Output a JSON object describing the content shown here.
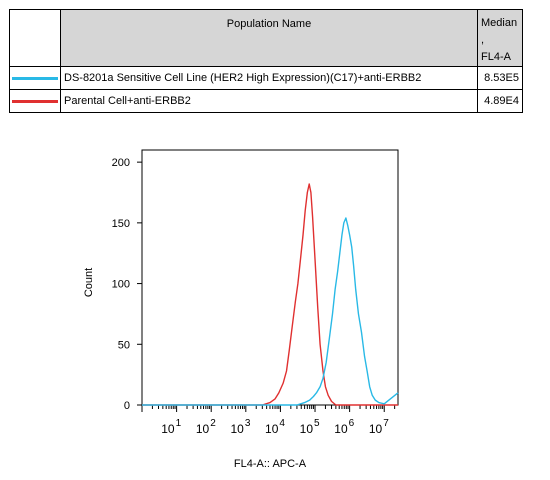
{
  "legend": {
    "header_population": "Population Name",
    "header_median_line1": "Median ,",
    "header_median_line2": "FL4-A",
    "rows": [
      {
        "name": "DS-8201a Sensitive Cell Line (HER2 High Expression)(C17)+anti-ERBB2",
        "median": "8.53E5",
        "color": "#29b9e6"
      },
      {
        "name": "Parental Cell+anti-ERBB2",
        "median": "4.89E4",
        "color": "#e03030"
      }
    ]
  },
  "chart_data": {
    "type": "line",
    "title": "",
    "xlabel": "FL4-A:: APC-A",
    "ylabel": "Count",
    "x_scale": "log",
    "xlim": [
      1,
      25000000
    ],
    "ylim": [
      0,
      210
    ],
    "yticks": [
      0,
      50,
      100,
      150,
      200
    ],
    "xtick_labels": [
      {
        "base": "10",
        "exp": "1",
        "value": 10
      },
      {
        "base": "10",
        "exp": "2",
        "value": 100
      },
      {
        "base": "10",
        "exp": "3",
        "value": 1000
      },
      {
        "base": "10",
        "exp": "4",
        "value": 10000
      },
      {
        "base": "10",
        "exp": "5",
        "value": 100000
      },
      {
        "base": "10",
        "exp": "6",
        "value": 1000000
      },
      {
        "base": "10",
        "exp": "7",
        "value": 10000000
      }
    ],
    "grid": false,
    "series": [
      {
        "color": "#e03030",
        "points": [
          [
            1,
            0
          ],
          [
            3000,
            0
          ],
          [
            5000,
            2
          ],
          [
            7000,
            5
          ],
          [
            9000,
            10
          ],
          [
            12000,
            18
          ],
          [
            15000,
            28
          ],
          [
            18000,
            45
          ],
          [
            22000,
            65
          ],
          [
            27000,
            85
          ],
          [
            32000,
            100
          ],
          [
            38000,
            120
          ],
          [
            45000,
            140
          ],
          [
            52000,
            160
          ],
          [
            60000,
            175
          ],
          [
            68000,
            182
          ],
          [
            76000,
            175
          ],
          [
            85000,
            155
          ],
          [
            100000,
            120
          ],
          [
            120000,
            80
          ],
          [
            140000,
            50
          ],
          [
            170000,
            28
          ],
          [
            200000,
            15
          ],
          [
            240000,
            8
          ],
          [
            300000,
            3
          ],
          [
            400000,
            0
          ],
          [
            25000000,
            0
          ]
        ]
      },
      {
        "color": "#29b9e6",
        "points": [
          [
            1,
            0
          ],
          [
            30000,
            0
          ],
          [
            50000,
            2
          ],
          [
            70000,
            4
          ],
          [
            90000,
            7
          ],
          [
            110000,
            10
          ],
          [
            140000,
            15
          ],
          [
            170000,
            22
          ],
          [
            210000,
            35
          ],
          [
            260000,
            55
          ],
          [
            320000,
            75
          ],
          [
            380000,
            95
          ],
          [
            450000,
            110
          ],
          [
            520000,
            125
          ],
          [
            600000,
            140
          ],
          [
            680000,
            150
          ],
          [
            780000,
            154
          ],
          [
            880000,
            148
          ],
          [
            1000000,
            140
          ],
          [
            1150000,
            130
          ],
          [
            1300000,
            115
          ],
          [
            1500000,
            95
          ],
          [
            1800000,
            75
          ],
          [
            2200000,
            60
          ],
          [
            2700000,
            40
          ],
          [
            3200000,
            28
          ],
          [
            3800000,
            15
          ],
          [
            4500000,
            8
          ],
          [
            5500000,
            4
          ],
          [
            7000000,
            2
          ],
          [
            10000000,
            1
          ],
          [
            25000000,
            10
          ]
        ]
      }
    ]
  }
}
